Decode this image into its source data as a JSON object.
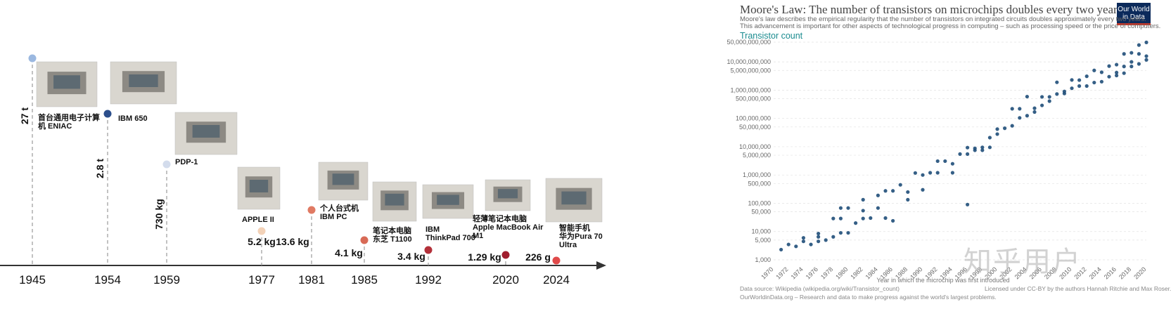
{
  "chart_data": [
    {
      "type": "timeline",
      "title": "",
      "points": [
        {
          "year": "1945",
          "weight": "27 t",
          "name": "首台通用电子计算机 ENIAC",
          "color": "#9bb8e0"
        },
        {
          "year": "1954",
          "weight": "2.8 t",
          "name": "IBM 650",
          "color": "#2c4f8c"
        },
        {
          "year": "1959",
          "weight": "730 kg",
          "name": "PDP-1",
          "color": "#d3dcec"
        },
        {
          "year": "1977",
          "weight": "5.2 kg",
          "name": "APPLE II",
          "color": "#f3d2b8"
        },
        {
          "year": "1981",
          "weight": "13.6 kg",
          "name": "个人台式机 IBM PC",
          "color": "#e07a63"
        },
        {
          "year": "1985",
          "weight": "4.1 kg",
          "name": "笔记本电脑 东芝 T1100",
          "color": "#d86a56"
        },
        {
          "year": "1992",
          "weight": "3.4 kg",
          "name": "IBM ThinkPad 700",
          "color": "#b3303a"
        },
        {
          "year": "2020",
          "weight": "1.29 kg",
          "name": "轻薄笔记本电脑 Apple MacBook Air M1",
          "color": "#a01e2e"
        },
        {
          "year": "2024",
          "weight": "226 g",
          "name": "智能手机 华为Pura 70 Ultra",
          "color": "#e04a4a"
        }
      ]
    },
    {
      "type": "scatter",
      "title": "Moore's Law: The number of transistors on microchips doubles every two years",
      "subtitle_lines": [
        "Moore's law describes the empirical regularity that the number of transistors on integrated circuits doubles approximately every two years.",
        "This advancement is important for other aspects of technological progress in computing – such as processing speed or the price of computers."
      ],
      "ylabel": "Transistor count",
      "xlabel": "Year in which the microchip was first introduced",
      "yscale": "log",
      "ylim": [
        1000,
        50000000000
      ],
      "xlim": [
        1970,
        2020
      ],
      "y_ticks": [
        "50,000,000,000",
        "10,000,000,000",
        "5,000,000,000",
        "1,000,000,000",
        "500,000,000",
        "100,000,000",
        "50,000,000",
        "10,000,000",
        "5,000,000",
        "1,000,000",
        "500,000",
        "100,000",
        "50,000",
        "10,000",
        "5,000",
        "1,000"
      ],
      "y_tick_values": [
        50000000000,
        10000000000,
        5000000000,
        1000000000,
        500000000,
        100000000,
        50000000,
        10000000,
        5000000,
        1000000,
        500000,
        100000,
        50000,
        10000,
        5000,
        1000
      ],
      "x_ticks": [
        "1970",
        "1972",
        "1974",
        "1976",
        "1978",
        "1980",
        "1982",
        "1984",
        "1986",
        "1988",
        "1990",
        "1992",
        "1994",
        "1996",
        "1998",
        "2000",
        "2002",
        "2004",
        "2006",
        "2008",
        "2010",
        "2012",
        "2014",
        "2016",
        "2018",
        "2020"
      ],
      "points": [
        [
          1971,
          2300
        ],
        [
          1972,
          3500
        ],
        [
          1974,
          4500
        ],
        [
          1974,
          6000
        ],
        [
          1975,
          3500
        ],
        [
          1976,
          6500
        ],
        [
          1976,
          8500
        ],
        [
          1977,
          5000
        ],
        [
          1978,
          29000
        ],
        [
          1979,
          29000
        ],
        [
          1979,
          68000
        ],
        [
          1980,
          9000
        ],
        [
          1981,
          20000
        ],
        [
          1982,
          55000
        ],
        [
          1982,
          134000
        ],
        [
          1983,
          30000
        ],
        [
          1984,
          190000
        ],
        [
          1985,
          275000
        ],
        [
          1985,
          30000
        ],
        [
          1986,
          24000
        ],
        [
          1987,
          450000
        ],
        [
          1988,
          250000
        ],
        [
          1989,
          1180000
        ],
        [
          1990,
          300000
        ],
        [
          1991,
          1200000
        ],
        [
          1992,
          3100000
        ],
        [
          1993,
          3100000
        ],
        [
          1994,
          2500000
        ],
        [
          1995,
          5500000
        ],
        [
          1996,
          9300000
        ],
        [
          1997,
          7500000
        ],
        [
          1997,
          8800000
        ],
        [
          1998,
          9500000
        ],
        [
          1999,
          21000000
        ],
        [
          2000,
          42000000
        ],
        [
          2001,
          45000000
        ],
        [
          2002,
          55000000
        ],
        [
          2003,
          105000000
        ],
        [
          2003,
          220000000
        ],
        [
          2004,
          125000000
        ],
        [
          2005,
          230000000
        ],
        [
          2006,
          290000000
        ],
        [
          2006,
          580000000
        ],
        [
          2007,
          410000000
        ],
        [
          2008,
          731000000
        ],
        [
          2008,
          1900000000
        ],
        [
          2009,
          904000000
        ],
        [
          2010,
          1170000000
        ],
        [
          2010,
          2300000000
        ],
        [
          2011,
          2270000000
        ],
        [
          2012,
          1400000000
        ],
        [
          2012,
          3100000000
        ],
        [
          2013,
          5000000000
        ],
        [
          2014,
          2000000000
        ],
        [
          2014,
          4300000000
        ],
        [
          2015,
          7100000000
        ],
        [
          2016,
          8000000000
        ],
        [
          2016,
          3300000000
        ],
        [
          2017,
          19200000000
        ],
        [
          2017,
          6900000000
        ],
        [
          2018,
          10000000000
        ],
        [
          2018,
          6900000000
        ],
        [
          2019,
          39540000000
        ],
        [
          2019,
          8500000000
        ],
        [
          2020,
          16000000000
        ],
        [
          2020,
          11800000000
        ],
        [
          2015,
          3000000000
        ],
        [
          2017,
          4000000000
        ],
        [
          2013,
          1860000000
        ],
        [
          2011,
          1400000000
        ],
        [
          2009,
          760000000
        ],
        [
          2007,
          580000000
        ],
        [
          2005,
          169000000
        ],
        [
          2004,
          592000000
        ],
        [
          2002,
          220000000
        ],
        [
          2000,
          28000000
        ],
        [
          1999,
          9500000
        ],
        [
          1998,
          7500000
        ],
        [
          1996,
          5500000
        ],
        [
          1994,
          1200000
        ],
        [
          1992,
          1200000
        ],
        [
          1990,
          1000000
        ],
        [
          1988,
          134000
        ],
        [
          1986,
          275000
        ],
        [
          1984,
          68000
        ],
        [
          1982,
          29000
        ],
        [
          1980,
          68000
        ],
        [
          1979,
          9000
        ],
        [
          1978,
          6500
        ],
        [
          1976,
          4500
        ],
        [
          1973,
          3000
        ],
        [
          1996,
          90000
        ],
        [
          2016,
          4200000000
        ],
        [
          2019,
          19200000000
        ],
        [
          2020,
          49000000000
        ],
        [
          2018,
          21000000000
        ]
      ]
    }
  ],
  "moore_labels": {
    "logo_line1": "Our World",
    "logo_line2": "in Data",
    "source_line1": "Data source: Wikipedia (wikipedia.org/wiki/Transistor_count)",
    "source_line2": "OurWorldinData.org – Research and data to make progress against the world's largest problems.",
    "license": "Licensed under CC-BY by the authors Hannah Ritchie and Max Roser."
  },
  "watermark": "知乎用户"
}
